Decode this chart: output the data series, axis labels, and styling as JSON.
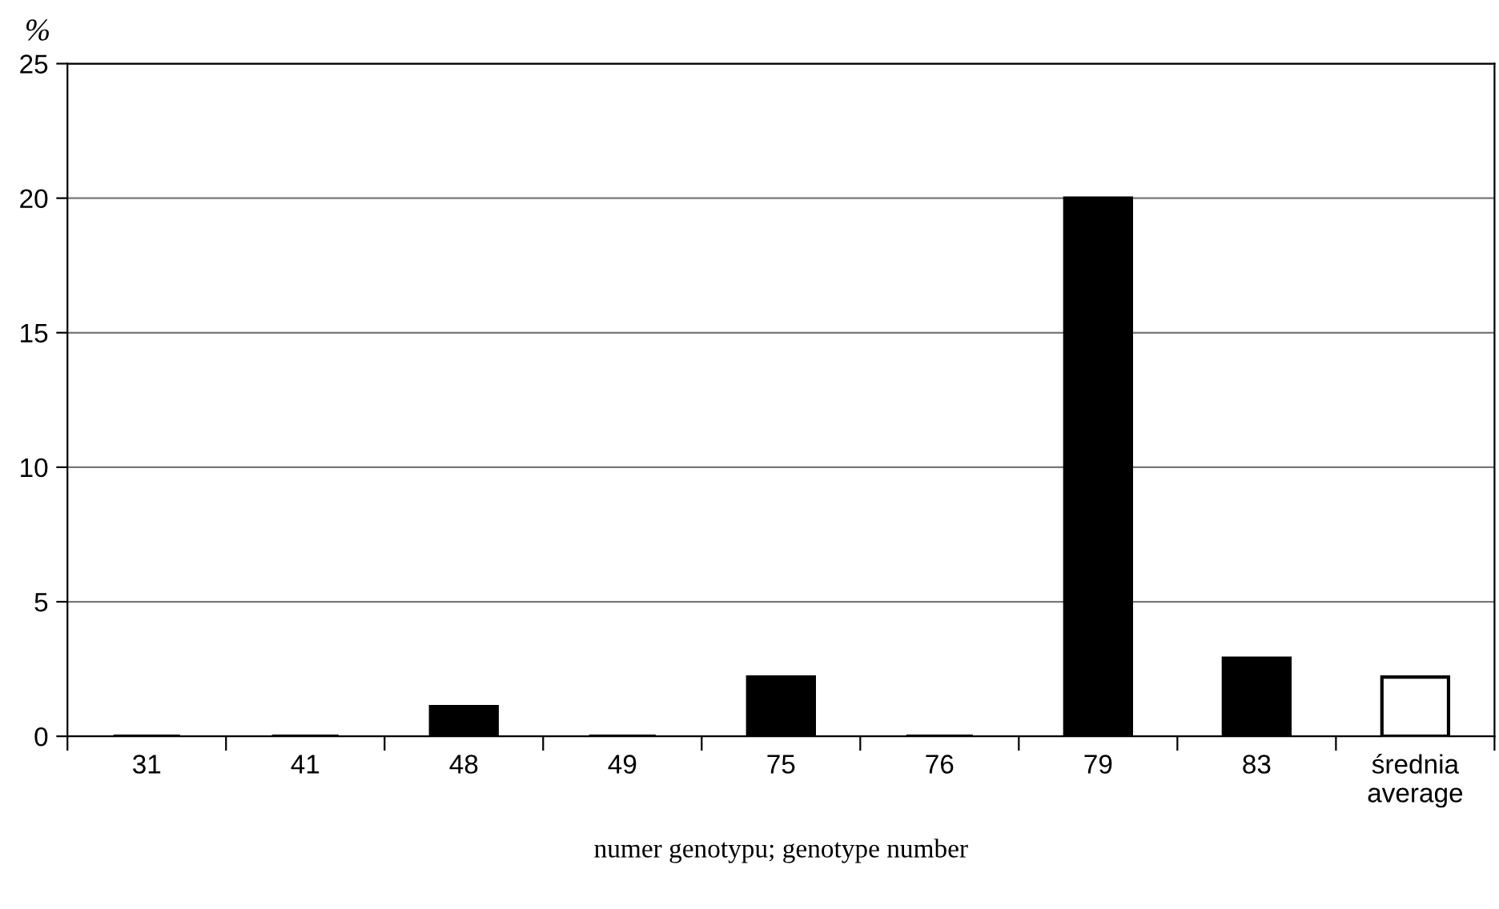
{
  "chart_data": {
    "type": "bar",
    "categories": [
      "31",
      "41",
      "48",
      "49",
      "75",
      "76",
      "79",
      "83",
      "średnia\naverage"
    ],
    "values": [
      0,
      0,
      1.1,
      0,
      2.2,
      0,
      20.0,
      2.9,
      2.2
    ],
    "colors": [
      "#000000",
      "#000000",
      "#000000",
      "#000000",
      "#000000",
      "#000000",
      "#000000",
      "#000000",
      "#ffffff"
    ],
    "ylabel": "%",
    "xlabel": "numer genotypu; genotype number",
    "ylim": [
      0,
      25
    ],
    "yticks": [
      0,
      5,
      10,
      15,
      20,
      25
    ],
    "grid": "y",
    "legend": false
  }
}
